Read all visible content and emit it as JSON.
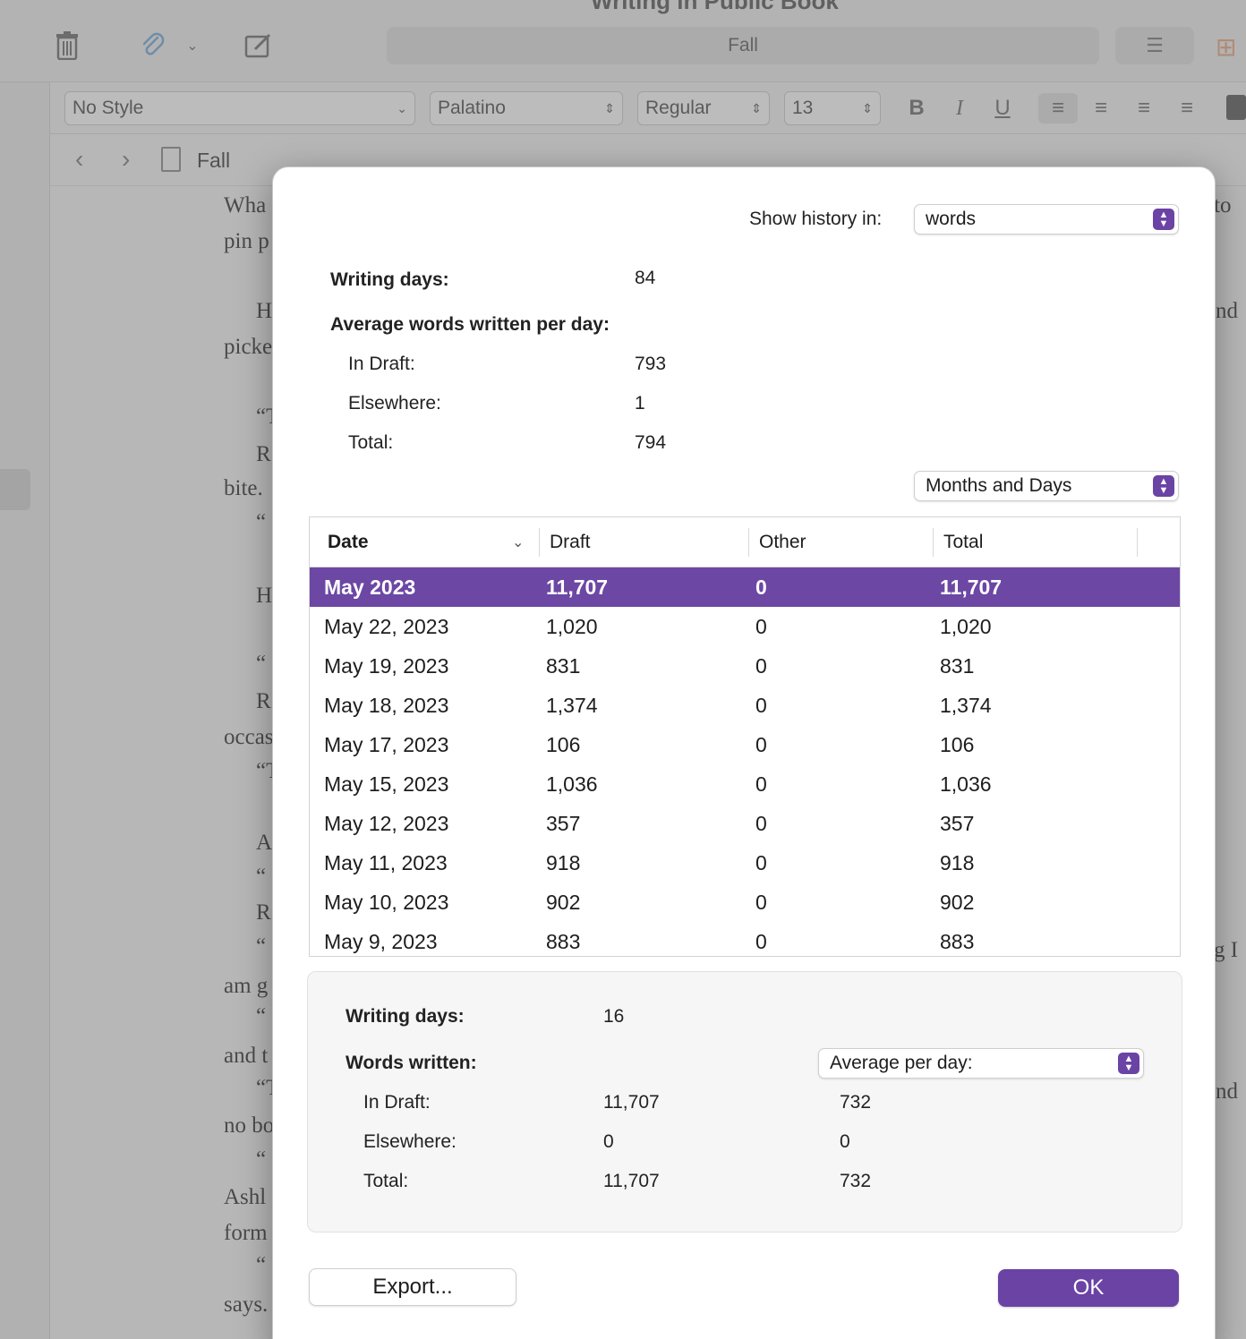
{
  "background": {
    "window_title": "Writing in Public Book",
    "toolbar": {
      "search_text": "Fall"
    },
    "format_bar": {
      "style": "No Style",
      "font": "Palatino",
      "weight": "Regular",
      "size": "13",
      "bold": "B",
      "italic": "I",
      "underline": "U"
    },
    "nav": {
      "document_title": "Fall"
    },
    "text_fragments": [
      "Wha",
      "pin p",
      "H",
      "picke",
      "“T",
      "R",
      "bite.",
      "“",
      "H",
      "“",
      "R",
      "occas",
      "“T",
      "A",
      "“",
      "R",
      "“",
      "am g",
      "“",
      "and t",
      "“T",
      "no bo",
      "“",
      "Ashl",
      "form",
      "“",
      "says.",
      "to",
      "nd",
      "g I",
      "nd"
    ]
  },
  "dialog": {
    "show_history_label": "Show history in:",
    "show_history_value": "words",
    "stats": {
      "writing_days_label": "Writing days:",
      "writing_days_value": "84",
      "average_label": "Average words written per day:",
      "in_draft_label": "In Draft:",
      "in_draft_value": "793",
      "elsewhere_label": "Elsewhere:",
      "elsewhere_value": "1",
      "total_label": "Total:",
      "total_value": "794"
    },
    "grouping_value": "Months and Days",
    "table": {
      "columns": [
        "Date",
        "Draft",
        "Other",
        "Total"
      ],
      "rows": [
        {
          "date": "May 2023",
          "draft": "11,707",
          "other": "0",
          "total": "11,707"
        },
        {
          "date": "May 22, 2023",
          "draft": "1,020",
          "other": "0",
          "total": "1,020"
        },
        {
          "date": "May 19, 2023",
          "draft": "831",
          "other": "0",
          "total": "831"
        },
        {
          "date": "May 18, 2023",
          "draft": "1,374",
          "other": "0",
          "total": "1,374"
        },
        {
          "date": "May 17, 2023",
          "draft": "106",
          "other": "0",
          "total": "106"
        },
        {
          "date": "May 15, 2023",
          "draft": "1,036",
          "other": "0",
          "total": "1,036"
        },
        {
          "date": "May 12, 2023",
          "draft": "357",
          "other": "0",
          "total": "357"
        },
        {
          "date": "May 11, 2023",
          "draft": "918",
          "other": "0",
          "total": "918"
        },
        {
          "date": "May 10, 2023",
          "draft": "902",
          "other": "0",
          "total": "902"
        },
        {
          "date": "May 9, 2023",
          "draft": "883",
          "other": "0",
          "total": "883"
        }
      ]
    },
    "summary": {
      "writing_days_label": "Writing days:",
      "writing_days_value": "16",
      "words_written_label": "Words written:",
      "mode_value": "Average per day:",
      "in_draft_label": "In Draft:",
      "in_draft_total": "11,707",
      "in_draft_avg": "732",
      "elsewhere_label": "Elsewhere:",
      "elsewhere_total": "0",
      "elsewhere_avg": "0",
      "total_label": "Total:",
      "total_total": "11,707",
      "total_avg": "732"
    },
    "export_label": "Export...",
    "ok_label": "OK"
  }
}
